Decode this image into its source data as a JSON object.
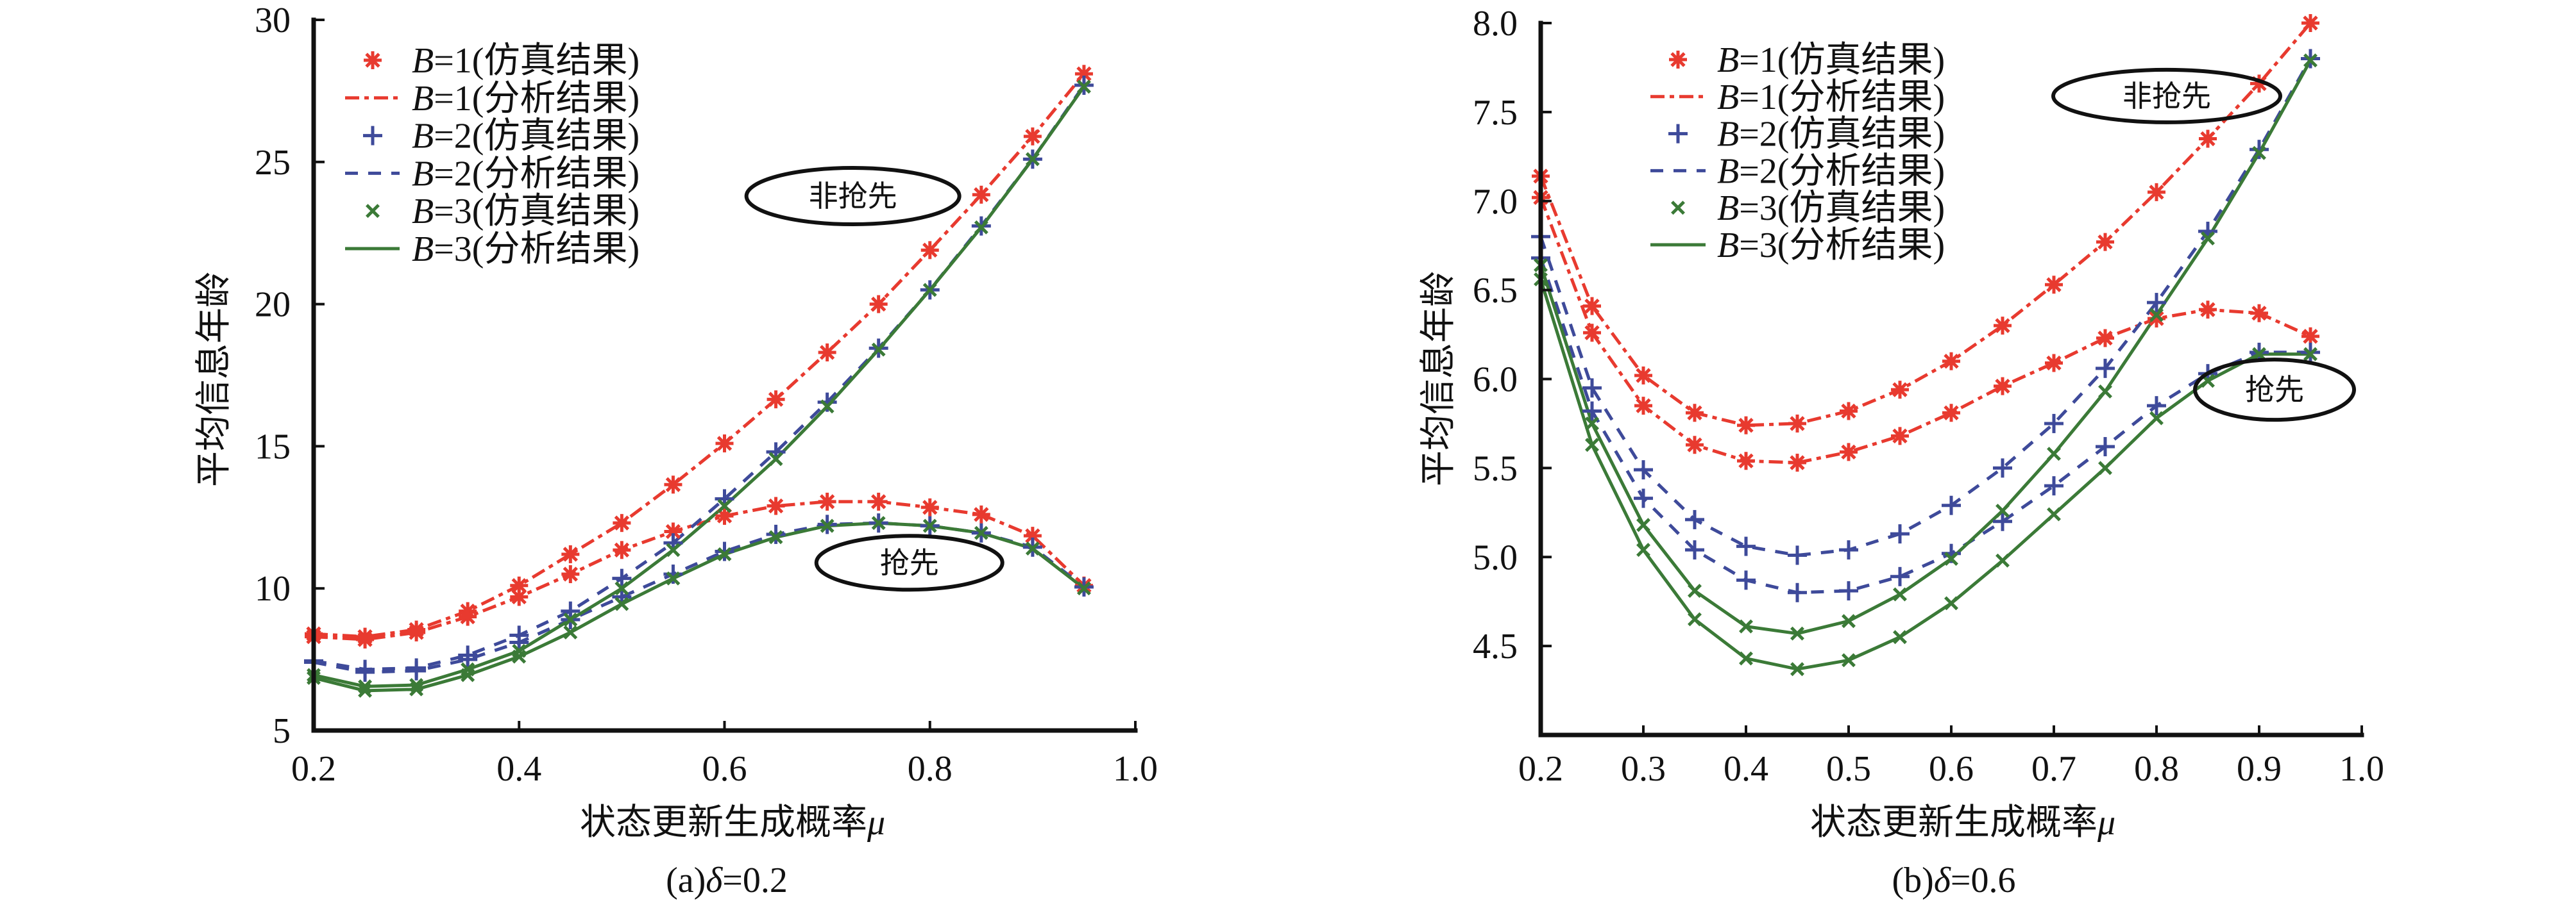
{
  "chart_data": [
    {
      "type": "line",
      "title": {
        "prefix": "(a)",
        "symbol": "δ",
        "suffix": "=0.2"
      },
      "xlabel": {
        "text": "状态更新生成概率",
        "symbol": "μ"
      },
      "ylabel": "平均信息年龄",
      "xlim": [
        0.2,
        1.0
      ],
      "ylim": [
        5,
        30
      ],
      "xticks": [
        0.2,
        0.4,
        0.6,
        0.8,
        1.0
      ],
      "xticklabels": [
        "0.2",
        "0.4",
        "0.6",
        "0.8",
        "1.0"
      ],
      "yticks": [
        5,
        10,
        15,
        20,
        25,
        30
      ],
      "yticklabels": [
        "5",
        "10",
        "15",
        "20",
        "25",
        "30"
      ],
      "grid": false,
      "x": [
        0.2,
        0.25,
        0.3,
        0.35,
        0.4,
        0.45,
        0.5,
        0.55,
        0.6,
        0.65,
        0.7,
        0.75,
        0.8,
        0.85,
        0.9,
        0.95
      ],
      "legend": {
        "position": "top-left",
        "entries": [
          {
            "variable": "B",
            "suffix": "=1(仿真结果)",
            "series": 0
          },
          {
            "variable": "B",
            "suffix": "=1(分析结果)",
            "series": 1
          },
          {
            "variable": "B",
            "suffix": "=2(仿真结果)",
            "series": 2
          },
          {
            "variable": "B",
            "suffix": "=2(分析结果)",
            "series": 3
          },
          {
            "variable": "B",
            "suffix": "=3(仿真结果)",
            "series": 4
          },
          {
            "variable": "B",
            "suffix": "=3(分析结果)",
            "series": 5
          }
        ]
      },
      "annotations": [
        {
          "text": "非抢先",
          "x": 0.725,
          "y": 23.8,
          "shape": "ellipse",
          "group": "non_preemptive"
        },
        {
          "text": "抢先",
          "x": 0.78,
          "y": 10.9,
          "shape": "ellipse",
          "group": "preemptive"
        }
      ],
      "series": [
        {
          "name": "B=1(仿真结果)",
          "B": 1,
          "kind": "simulation",
          "marker": "asterisk",
          "color": "#e83a2f",
          "non_preemptive": [
            8.4,
            8.3,
            8.55,
            9.2,
            10.1,
            11.2,
            12.3,
            13.65,
            15.1,
            16.65,
            18.3,
            20.0,
            21.9,
            23.85,
            25.9,
            28.1
          ],
          "preemptive": [
            8.3,
            8.2,
            8.45,
            9.0,
            9.7,
            10.5,
            11.35,
            12.0,
            12.55,
            12.9,
            13.05,
            13.05,
            12.85,
            12.6,
            11.85,
            10.1
          ]
        },
        {
          "name": "B=1(分析结果)",
          "B": 1,
          "kind": "analysis",
          "line_style": "dash-dot",
          "color": "#e83a2f",
          "non_preemptive": [
            8.4,
            8.3,
            8.55,
            9.2,
            10.1,
            11.2,
            12.3,
            13.65,
            15.1,
            16.65,
            18.3,
            20.0,
            21.9,
            23.85,
            25.9,
            28.1
          ],
          "preemptive": [
            8.3,
            8.2,
            8.45,
            9.0,
            9.7,
            10.5,
            11.35,
            12.0,
            12.55,
            12.9,
            13.05,
            13.05,
            12.85,
            12.6,
            11.85,
            10.1
          ]
        },
        {
          "name": "B=2(仿真结果)",
          "B": 2,
          "kind": "simulation",
          "marker": "plus",
          "color": "#3e4a9a",
          "non_preemptive": [
            7.45,
            7.15,
            7.2,
            7.65,
            8.35,
            9.2,
            10.35,
            11.6,
            13.15,
            14.8,
            16.55,
            18.45,
            20.5,
            22.75,
            25.1,
            27.7
          ],
          "preemptive": [
            7.4,
            7.05,
            7.1,
            7.5,
            8.1,
            8.9,
            9.7,
            10.5,
            11.3,
            11.9,
            12.25,
            12.3,
            12.2,
            11.95,
            11.45,
            10.05
          ]
        },
        {
          "name": "B=2(分析结果)",
          "B": 2,
          "kind": "analysis",
          "line_style": "dashed",
          "color": "#3e4a9a",
          "non_preemptive": [
            7.45,
            7.15,
            7.2,
            7.65,
            8.35,
            9.2,
            10.35,
            11.6,
            13.15,
            14.8,
            16.55,
            18.45,
            20.5,
            22.75,
            25.1,
            27.7
          ],
          "preemptive": [
            7.4,
            7.05,
            7.1,
            7.5,
            8.1,
            8.9,
            9.7,
            10.5,
            11.3,
            11.9,
            12.25,
            12.3,
            12.2,
            11.95,
            11.45,
            10.05
          ]
        },
        {
          "name": "B=3(仿真结果)",
          "B": 3,
          "kind": "simulation",
          "marker": "x",
          "color": "#3b7a37",
          "non_preemptive": [
            6.95,
            6.55,
            6.6,
            7.15,
            7.8,
            8.9,
            10.0,
            11.35,
            12.9,
            14.55,
            16.4,
            18.4,
            20.5,
            22.7,
            25.1,
            27.65
          ],
          "preemptive": [
            6.85,
            6.4,
            6.45,
            6.95,
            7.6,
            8.45,
            9.45,
            10.35,
            11.2,
            11.8,
            12.2,
            12.3,
            12.2,
            11.95,
            11.4,
            10.0
          ]
        },
        {
          "name": "B=3(分析结果)",
          "B": 3,
          "kind": "analysis",
          "line_style": "solid",
          "color": "#3b7a37",
          "non_preemptive": [
            6.95,
            6.55,
            6.6,
            7.15,
            7.8,
            8.9,
            10.0,
            11.35,
            12.9,
            14.55,
            16.4,
            18.4,
            20.5,
            22.7,
            25.1,
            27.65
          ],
          "preemptive": [
            6.85,
            6.4,
            6.45,
            6.95,
            7.6,
            8.45,
            9.45,
            10.35,
            11.2,
            11.8,
            12.2,
            12.3,
            12.2,
            11.95,
            11.4,
            10.0
          ]
        }
      ]
    },
    {
      "type": "line",
      "title": {
        "prefix": "(b)",
        "symbol": "δ",
        "suffix": "=0.6"
      },
      "xlabel": {
        "text": "状态更新生成概率",
        "symbol": "μ"
      },
      "ylabel": "平均信息年龄",
      "xlim": [
        0.2,
        1.0
      ],
      "ylim": [
        4.0,
        8.0
      ],
      "xticks": [
        0.2,
        0.3,
        0.4,
        0.5,
        0.6,
        0.7,
        0.8,
        0.9,
        1.0
      ],
      "xticklabels": [
        "0.2",
        "0.3",
        "0.4",
        "0.5",
        "0.6",
        "0.7",
        "0.8",
        "0.9",
        "1.0"
      ],
      "yticks": [
        4.5,
        5.0,
        5.5,
        6.0,
        6.5,
        7.0,
        7.5,
        8.0
      ],
      "yticklabels": [
        "4.5",
        "5.0",
        "5.5",
        "6.0",
        "6.5",
        "7.0",
        "7.5",
        "8.0"
      ],
      "grid": false,
      "x": [
        0.2,
        0.25,
        0.3,
        0.35,
        0.4,
        0.45,
        0.5,
        0.55,
        0.6,
        0.65,
        0.7,
        0.75,
        0.8,
        0.85,
        0.9,
        0.95
      ],
      "legend": {
        "position": "top-left",
        "entries": [
          {
            "variable": "B",
            "suffix": "=1(仿真结果)",
            "series": 0
          },
          {
            "variable": "B",
            "suffix": "=1(分析结果)",
            "series": 1
          },
          {
            "variable": "B",
            "suffix": "=2(仿真结果)",
            "series": 2
          },
          {
            "variable": "B",
            "suffix": "=2(分析结果)",
            "series": 3
          },
          {
            "variable": "B",
            "suffix": "=3(仿真结果)",
            "series": 4
          },
          {
            "variable": "B",
            "suffix": "=3(分析结果)",
            "series": 5
          }
        ]
      },
      "annotations": [
        {
          "text": "非抢先",
          "x": 0.81,
          "y": 7.59,
          "shape": "ellipse",
          "group": "non_preemptive"
        },
        {
          "text": "抢先",
          "x": 0.915,
          "y": 5.94,
          "shape": "ellipse",
          "group": "preemptive"
        }
      ],
      "series": [
        {
          "name": "B=1(仿真结果)",
          "B": 1,
          "kind": "simulation",
          "marker": "asterisk",
          "color": "#e83a2f",
          "non_preemptive": [
            7.14,
            6.41,
            6.02,
            5.81,
            5.74,
            5.75,
            5.82,
            5.94,
            6.1,
            6.3,
            6.53,
            6.77,
            7.05,
            7.35,
            7.66,
            8.0
          ],
          "preemptive": [
            7.02,
            6.26,
            5.85,
            5.63,
            5.54,
            5.53,
            5.59,
            5.68,
            5.81,
            5.96,
            6.09,
            6.23,
            6.34,
            6.39,
            6.37,
            6.24
          ]
        },
        {
          "name": "B=1(分析结果)",
          "B": 1,
          "kind": "analysis",
          "line_style": "dash-dot",
          "color": "#e83a2f",
          "non_preemptive": [
            7.14,
            6.41,
            6.02,
            5.81,
            5.74,
            5.75,
            5.82,
            5.94,
            6.1,
            6.3,
            6.53,
            6.77,
            7.05,
            7.35,
            7.66,
            8.0
          ],
          "preemptive": [
            7.02,
            6.26,
            5.85,
            5.63,
            5.54,
            5.53,
            5.59,
            5.68,
            5.81,
            5.96,
            6.09,
            6.23,
            6.34,
            6.39,
            6.37,
            6.24
          ]
        },
        {
          "name": "B=2(仿真结果)",
          "B": 2,
          "kind": "simulation",
          "marker": "plus",
          "color": "#3e4a9a",
          "non_preemptive": [
            6.8,
            5.95,
            5.49,
            5.21,
            5.06,
            5.01,
            5.04,
            5.13,
            5.29,
            5.5,
            5.75,
            6.06,
            6.43,
            6.83,
            7.29,
            7.8
          ],
          "preemptive": [
            6.68,
            5.82,
            5.33,
            5.04,
            4.87,
            4.8,
            4.81,
            4.89,
            5.02,
            5.2,
            5.4,
            5.62,
            5.85,
            6.03,
            6.15,
            6.15
          ]
        },
        {
          "name": "B=2(分析结果)",
          "B": 2,
          "kind": "analysis",
          "line_style": "dashed",
          "color": "#3e4a9a",
          "non_preemptive": [
            6.8,
            5.95,
            5.49,
            5.21,
            5.06,
            5.01,
            5.04,
            5.13,
            5.29,
            5.5,
            5.75,
            6.06,
            6.43,
            6.83,
            7.29,
            7.8
          ],
          "preemptive": [
            6.68,
            5.82,
            5.33,
            5.04,
            4.87,
            4.8,
            4.81,
            4.89,
            5.02,
            5.2,
            5.4,
            5.62,
            5.85,
            6.03,
            6.15,
            6.15
          ]
        },
        {
          "name": "B=3(仿真结果)",
          "B": 3,
          "kind": "simulation",
          "marker": "x",
          "color": "#3b7a37",
          "non_preemptive": [
            6.64,
            5.75,
            5.18,
            4.81,
            4.61,
            4.57,
            4.64,
            4.79,
            4.99,
            5.26,
            5.58,
            5.93,
            6.36,
            6.79,
            7.27,
            7.79
          ],
          "preemptive": [
            6.56,
            5.63,
            5.04,
            4.65,
            4.43,
            4.37,
            4.42,
            4.55,
            4.74,
            4.98,
            5.24,
            5.5,
            5.78,
            5.99,
            6.14,
            6.14
          ]
        },
        {
          "name": "B=3(分析结果)",
          "B": 3,
          "kind": "analysis",
          "line_style": "solid",
          "color": "#3b7a37",
          "non_preemptive": [
            6.64,
            5.75,
            5.18,
            4.81,
            4.61,
            4.57,
            4.64,
            4.79,
            4.99,
            5.26,
            5.58,
            5.93,
            6.36,
            6.79,
            7.27,
            7.79
          ],
          "preemptive": [
            6.56,
            5.63,
            5.04,
            4.65,
            4.43,
            4.37,
            4.42,
            4.55,
            4.74,
            4.98,
            5.24,
            5.5,
            5.78,
            5.99,
            6.14,
            6.14
          ]
        }
      ]
    }
  ]
}
